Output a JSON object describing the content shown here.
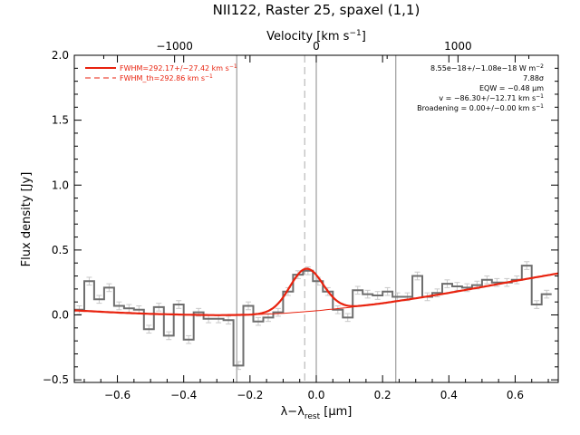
{
  "chart_data": {
    "type": "line",
    "title": "NII122, Raster 25, spaxel (1,1)",
    "xlabel_main": "λ−λ",
    "xlabel_sub": "rest",
    "xlabel_unit": " [μm]",
    "ylabel": "Flux density [Jy]",
    "top_xlabel_main": "Velocity [km s",
    "top_xlabel_sup": "−1",
    "top_xlabel_end": "]",
    "xlim": [
      -0.73,
      0.73
    ],
    "ylim": [
      -0.52,
      2.0
    ],
    "x_ticks": [
      -0.6,
      -0.4,
      -0.2,
      0.0,
      0.2,
      0.4,
      0.6
    ],
    "x_tick_labels": [
      "−0.6",
      "−0.4",
      "−0.2",
      "0.0",
      "0.2",
      "0.4",
      "0.6"
    ],
    "y_ticks": [
      -0.5,
      0.0,
      0.5,
      1.0,
      1.5,
      2.0
    ],
    "y_tick_labels": [
      "−0.5",
      "0.0",
      "0.5",
      "1.0",
      "1.5",
      "2.0"
    ],
    "top_ticks_km_s": [
      -1000,
      0,
      1000
    ],
    "top_tick_labels": [
      "−1000",
      "0",
      "1000"
    ],
    "vertical_lines": [
      -0.24,
      0.0,
      0.24
    ],
    "dashed_line": -0.035,
    "legend": [
      {
        "label": "FWHM=292.17+/−27.42 km s",
        "sup": "−1",
        "style": "solid",
        "color": "#e8220e"
      },
      {
        "label": "FWHM_th=292.86 km s",
        "sup": "−1",
        "style": "dashed",
        "color": "#e8220e"
      }
    ],
    "annotations": [
      {
        "text": "8.55e−18+/−1.08e−18 W m",
        "sup": "−2"
      },
      {
        "text": "7.88σ",
        "sup": ""
      },
      {
        "text": "EQW = −0.48 μm",
        "sup": ""
      },
      {
        "text": "v = −86.30+/−12.71 km s",
        "sup": "−1"
      },
      {
        "text": "Broadening = 0.00+/−0.00 km s",
        "sup": "−1"
      }
    ],
    "series": [
      {
        "kind": "histogram",
        "color": "#808080",
        "x": [
          -0.715,
          -0.685,
          -0.655,
          -0.625,
          -0.595,
          -0.565,
          -0.535,
          -0.505,
          -0.475,
          -0.445,
          -0.415,
          -0.385,
          -0.355,
          -0.325,
          -0.295,
          -0.265,
          -0.235,
          -0.205,
          -0.175,
          -0.145,
          -0.115,
          -0.085,
          -0.055,
          -0.025,
          0.005,
          0.035,
          0.065,
          0.095,
          0.125,
          0.155,
          0.185,
          0.215,
          0.245,
          0.275,
          0.305,
          0.335,
          0.365,
          0.395,
          0.425,
          0.455,
          0.485,
          0.515,
          0.545,
          0.575,
          0.605,
          0.635,
          0.665,
          0.695
        ],
        "y": [
          0.04,
          0.26,
          0.12,
          0.21,
          0.07,
          0.05,
          0.04,
          -0.11,
          0.06,
          -0.16,
          0.08,
          -0.19,
          0.02,
          -0.03,
          -0.03,
          -0.04,
          -0.39,
          0.07,
          -0.05,
          -0.02,
          0.02,
          0.18,
          0.31,
          0.34,
          0.26,
          0.18,
          0.04,
          -0.02,
          0.19,
          0.16,
          0.15,
          0.18,
          0.14,
          0.14,
          0.3,
          0.14,
          0.17,
          0.24,
          0.22,
          0.21,
          0.23,
          0.27,
          0.25,
          0.25,
          0.27,
          0.38,
          0.08,
          0.16
        ]
      },
      {
        "kind": "continuum",
        "name": "",
        "color": "#e8220e",
        "x": [
          -0.73,
          -0.6,
          -0.5,
          -0.4,
          -0.3,
          -0.2,
          -0.1,
          0.0,
          0.1,
          0.2,
          0.3,
          0.4,
          0.5,
          0.6,
          0.73
        ],
        "y": [
          0.035,
          0.018,
          0.008,
          0.002,
          -0.002,
          0.001,
          0.012,
          0.032,
          0.058,
          0.09,
          0.128,
          0.17,
          0.215,
          0.262,
          0.32
        ]
      },
      {
        "kind": "fit",
        "color": "#e8220e",
        "peak_center": -0.03,
        "peak_amplitude": 0.33,
        "peak_sigma": 0.05
      }
    ]
  }
}
